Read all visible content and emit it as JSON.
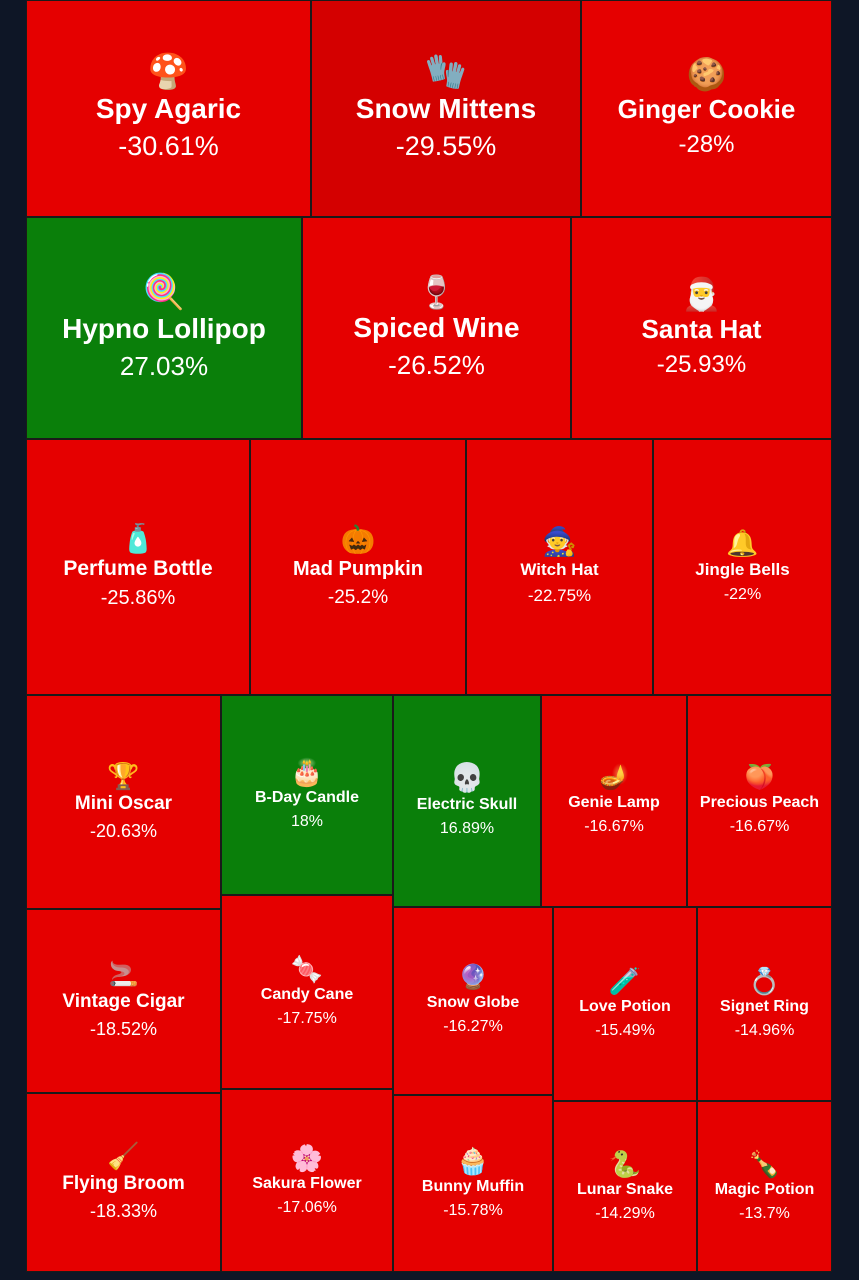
{
  "chart_data": {
    "type": "treemap",
    "colors": {
      "negative": "#e50000",
      "negative_strong": "#d40000",
      "positive": "#0a7f0a",
      "text": "#ffffff"
    },
    "items": [
      {
        "name": "Spy Agaric",
        "change": "-30.61%",
        "value": -30.61,
        "icon": "mushroom-icon",
        "glyph": "🍄"
      },
      {
        "name": "Snow Mittens",
        "change": "-29.55%",
        "value": -29.55,
        "icon": "mittens-icon",
        "glyph": "🧤"
      },
      {
        "name": "Ginger Cookie",
        "change": "-28%",
        "value": -28,
        "icon": "gingerbread-icon",
        "glyph": "🍪"
      },
      {
        "name": "Hypno Lollipop",
        "change": "27.03%",
        "value": 27.03,
        "icon": "lollipop-icon",
        "glyph": "🍭"
      },
      {
        "name": "Spiced Wine",
        "change": "-26.52%",
        "value": -26.52,
        "icon": "wine-glass-icon",
        "glyph": "🍷"
      },
      {
        "name": "Santa Hat",
        "change": "-25.93%",
        "value": -25.93,
        "icon": "santa-hat-icon",
        "glyph": "🎅"
      },
      {
        "name": "Perfume Bottle",
        "change": "-25.86%",
        "value": -25.86,
        "icon": "perfume-icon",
        "glyph": "🧴"
      },
      {
        "name": "Mad Pumpkin",
        "change": "-25.2%",
        "value": -25.2,
        "icon": "pumpkin-icon",
        "glyph": "🎃"
      },
      {
        "name": "Witch Hat",
        "change": "-22.75%",
        "value": -22.75,
        "icon": "witch-hat-icon",
        "glyph": "🧙"
      },
      {
        "name": "Jingle Bells",
        "change": "-22%",
        "value": -22,
        "icon": "bells-icon",
        "glyph": "🔔"
      },
      {
        "name": "Mini Oscar",
        "change": "-20.63%",
        "value": -20.63,
        "icon": "trophy-icon",
        "glyph": "🏆"
      },
      {
        "name": "B-Day Candle",
        "change": "18%",
        "value": 18,
        "icon": "cake-icon",
        "glyph": "🎂"
      },
      {
        "name": "Electric Skull",
        "change": "16.89%",
        "value": 16.89,
        "icon": "skull-icon",
        "glyph": "💀"
      },
      {
        "name": "Genie Lamp",
        "change": "-16.67%",
        "value": -16.67,
        "icon": "lamp-icon",
        "glyph": "🪔"
      },
      {
        "name": "Precious Peach",
        "change": "-16.67%",
        "value": -16.67,
        "icon": "peach-icon",
        "glyph": "🍑"
      },
      {
        "name": "Vintage Cigar",
        "change": "-18.52%",
        "value": -18.52,
        "icon": "cigar-icon",
        "glyph": "🚬"
      },
      {
        "name": "Candy Cane",
        "change": "-17.75%",
        "value": -17.75,
        "icon": "candy-cane-icon",
        "glyph": "🍬"
      },
      {
        "name": "Snow Globe",
        "change": "-16.27%",
        "value": -16.27,
        "icon": "snow-globe-icon",
        "glyph": "🔮"
      },
      {
        "name": "Love Potion",
        "change": "-15.49%",
        "value": -15.49,
        "icon": "potion-icon",
        "glyph": "🧪"
      },
      {
        "name": "Signet Ring",
        "change": "-14.96%",
        "value": -14.96,
        "icon": "ring-icon",
        "glyph": "💍"
      },
      {
        "name": "Flying Broom",
        "change": "-18.33%",
        "value": -18.33,
        "icon": "broom-icon",
        "glyph": "🧹"
      },
      {
        "name": "Sakura Flower",
        "change": "-17.06%",
        "value": -17.06,
        "icon": "flower-icon",
        "glyph": "🌸"
      },
      {
        "name": "Bunny Muffin",
        "change": "-15.78%",
        "value": -15.78,
        "icon": "muffin-icon",
        "glyph": "🧁"
      },
      {
        "name": "Lunar Snake",
        "change": "-14.29%",
        "value": -14.29,
        "icon": "snake-icon",
        "glyph": "🐍"
      },
      {
        "name": "Magic Potion",
        "change": "-13.7%",
        "value": -13.7,
        "icon": "potion-bottle-icon",
        "glyph": "🍾"
      }
    ]
  }
}
